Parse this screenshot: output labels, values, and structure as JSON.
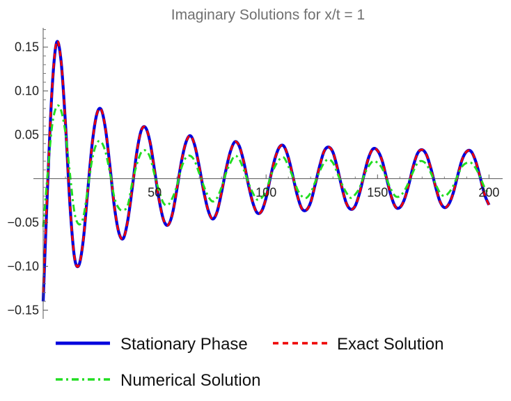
{
  "chart_data": {
    "type": "line",
    "title": "Imaginary Solutions for x/t = 1",
    "xlabel": "",
    "ylabel": "",
    "xlim": [
      0,
      203
    ],
    "ylim": [
      -0.152,
      0.172
    ],
    "x_ticks": [
      50,
      100,
      150,
      200
    ],
    "x_tick_labels": [
      "50",
      "100",
      "150",
      "200"
    ],
    "y_ticks": [
      -0.15,
      -0.1,
      -0.05,
      0.05,
      0.1,
      0.15
    ],
    "y_tick_labels": [
      "−0.15",
      "−0.10",
      "−0.05",
      "0.05",
      "0.10",
      "0.15"
    ],
    "grid": false,
    "legend_position": "bottom",
    "series": [
      {
        "name": "Stationary Phase",
        "color": "#0000dd",
        "style": "solid",
        "x": [
          0,
          2,
          4,
          6,
          8,
          10,
          12,
          14,
          16,
          18,
          20,
          22,
          24,
          26,
          28,
          30,
          32,
          34,
          36,
          38,
          40,
          42,
          44,
          46,
          48,
          50,
          52,
          54,
          56,
          58,
          60,
          62,
          64,
          66,
          68,
          70,
          72,
          74,
          76,
          78,
          80,
          82,
          84,
          86,
          88,
          90,
          92,
          94,
          96,
          98,
          100,
          102,
          104,
          106,
          108,
          110,
          112,
          114,
          116,
          118,
          120,
          122,
          124,
          126,
          128,
          130,
          132,
          134,
          136,
          138,
          140,
          142,
          144,
          146,
          148,
          150,
          152,
          154,
          156,
          158,
          160,
          162,
          164,
          166,
          168,
          170,
          172,
          174,
          176,
          178,
          180,
          182,
          184,
          186,
          188,
          190,
          192,
          194,
          196,
          198,
          200
        ],
        "y": [
          -0.14,
          -0.008,
          0.102,
          0.155,
          0.135,
          0.063,
          -0.029,
          -0.089,
          -0.099,
          -0.07,
          -0.014,
          0.04,
          0.073,
          0.079,
          0.056,
          0.013,
          -0.033,
          -0.062,
          -0.068,
          -0.047,
          -0.01,
          0.03,
          0.055,
          0.058,
          0.041,
          0.009,
          -0.024,
          -0.047,
          -0.053,
          -0.04,
          -0.012,
          0.019,
          0.041,
          0.049,
          0.038,
          0.014,
          -0.014,
          -0.036,
          -0.046,
          -0.038,
          -0.016,
          0.01,
          0.031,
          0.042,
          0.037,
          0.019,
          -0.006,
          -0.027,
          -0.039,
          -0.037,
          -0.022,
          0.002,
          0.023,
          0.036,
          0.037,
          0.024,
          0.003,
          -0.019,
          -0.034,
          -0.036,
          -0.027,
          -0.007,
          0.014,
          0.031,
          0.036,
          0.03,
          0.012,
          -0.01,
          -0.028,
          -0.035,
          -0.031,
          -0.016,
          0.005,
          0.024,
          0.034,
          0.032,
          0.021,
          0.001,
          -0.019,
          -0.032,
          -0.033,
          -0.024,
          -0.007,
          0.014,
          0.029,
          0.033,
          0.027,
          0.011,
          -0.009,
          -0.026,
          -0.033,
          -0.029,
          -0.016,
          0.004,
          0.022,
          0.031,
          0.031,
          0.02,
          0.002,
          -0.018,
          -0.03
        ]
      },
      {
        "name": "Exact Solution",
        "color": "#ee0000",
        "style": "dashed",
        "x": [
          0,
          2,
          4,
          6,
          8,
          10,
          12,
          14,
          16,
          18,
          20,
          22,
          24,
          26,
          28,
          30,
          32,
          34,
          36,
          38,
          40,
          42,
          44,
          46,
          48,
          50,
          52,
          54,
          56,
          58,
          60,
          62,
          64,
          66,
          68,
          70,
          72,
          74,
          76,
          78,
          80,
          82,
          84,
          86,
          88,
          90,
          92,
          94,
          96,
          98,
          100,
          102,
          104,
          106,
          108,
          110,
          112,
          114,
          116,
          118,
          120,
          122,
          124,
          126,
          128,
          130,
          132,
          134,
          136,
          138,
          140,
          142,
          144,
          146,
          148,
          150,
          152,
          154,
          156,
          158,
          160,
          162,
          164,
          166,
          168,
          170,
          172,
          174,
          176,
          178,
          180,
          182,
          184,
          186,
          188,
          190,
          192,
          194,
          196,
          198,
          200
        ],
        "y": [
          -0.13,
          -0.006,
          0.103,
          0.156,
          0.135,
          0.063,
          -0.029,
          -0.089,
          -0.099,
          -0.07,
          -0.014,
          0.04,
          0.073,
          0.079,
          0.056,
          0.013,
          -0.033,
          -0.062,
          -0.068,
          -0.047,
          -0.01,
          0.03,
          0.055,
          0.058,
          0.041,
          0.009,
          -0.024,
          -0.047,
          -0.053,
          -0.04,
          -0.012,
          0.019,
          0.041,
          0.049,
          0.038,
          0.014,
          -0.014,
          -0.036,
          -0.046,
          -0.038,
          -0.016,
          0.01,
          0.031,
          0.042,
          0.037,
          0.019,
          -0.006,
          -0.027,
          -0.039,
          -0.037,
          -0.022,
          0.002,
          0.023,
          0.036,
          0.037,
          0.024,
          0.003,
          -0.019,
          -0.034,
          -0.036,
          -0.027,
          -0.007,
          0.014,
          0.031,
          0.036,
          0.03,
          0.012,
          -0.01,
          -0.028,
          -0.035,
          -0.031,
          -0.016,
          0.005,
          0.024,
          0.034,
          0.032,
          0.021,
          0.001,
          -0.019,
          -0.032,
          -0.033,
          -0.024,
          -0.007,
          0.014,
          0.029,
          0.033,
          0.027,
          0.011,
          -0.009,
          -0.026,
          -0.033,
          -0.029,
          -0.016,
          0.004,
          0.022,
          0.031,
          0.031,
          0.02,
          0.002,
          -0.018,
          -0.03
        ]
      },
      {
        "name": "Numerical Solution",
        "color": "#22dd22",
        "style": "dashdot",
        "x": [
          0,
          2,
          4,
          6,
          8,
          10,
          12,
          14,
          16,
          18,
          20,
          22,
          24,
          26,
          28,
          30,
          32,
          34,
          36,
          38,
          40,
          42,
          44,
          46,
          48,
          50,
          52,
          54,
          56,
          58,
          60,
          62,
          64,
          66,
          68,
          70,
          72,
          74,
          76,
          78,
          80,
          82,
          84,
          86,
          88,
          90,
          92,
          94,
          96,
          98,
          100,
          102,
          104,
          106,
          108,
          110,
          112,
          114,
          116,
          118,
          120,
          122,
          124,
          126,
          128,
          130,
          132,
          134,
          136,
          138,
          140,
          142,
          144,
          146,
          148,
          150,
          152,
          154,
          156,
          158,
          160,
          162,
          164,
          166,
          168,
          170,
          172,
          174,
          176,
          178,
          180,
          182,
          184,
          186,
          188,
          190,
          192,
          194,
          196,
          198,
          200
        ],
        "y": [
          -0.055,
          0.005,
          0.06,
          0.082,
          0.078,
          0.052,
          0.006,
          -0.038,
          -0.052,
          -0.044,
          -0.012,
          0.022,
          0.04,
          0.042,
          0.03,
          0.006,
          -0.022,
          -0.034,
          -0.036,
          -0.03,
          -0.004,
          0.016,
          0.03,
          0.032,
          0.024,
          0.004,
          -0.014,
          -0.028,
          -0.03,
          -0.022,
          -0.008,
          0.012,
          0.024,
          0.026,
          0.02,
          0.006,
          -0.008,
          -0.02,
          -0.026,
          -0.022,
          -0.01,
          0.006,
          0.018,
          0.026,
          0.022,
          0.01,
          -0.004,
          -0.016,
          -0.024,
          -0.022,
          -0.014,
          0.002,
          0.014,
          0.022,
          0.024,
          0.014,
          0.002,
          -0.012,
          -0.02,
          -0.022,
          -0.016,
          -0.004,
          0.008,
          0.018,
          0.022,
          0.018,
          0.006,
          -0.006,
          -0.016,
          -0.022,
          -0.018,
          -0.01,
          0.004,
          0.014,
          0.02,
          0.018,
          0.012,
          0.0,
          -0.012,
          -0.02,
          -0.02,
          -0.014,
          -0.004,
          0.008,
          0.018,
          0.02,
          0.016,
          0.006,
          -0.006,
          -0.016,
          -0.02,
          -0.016,
          -0.008,
          0.004,
          0.014,
          0.018,
          0.018,
          0.012,
          0.002,
          -0.01,
          -0.018
        ]
      }
    ]
  }
}
